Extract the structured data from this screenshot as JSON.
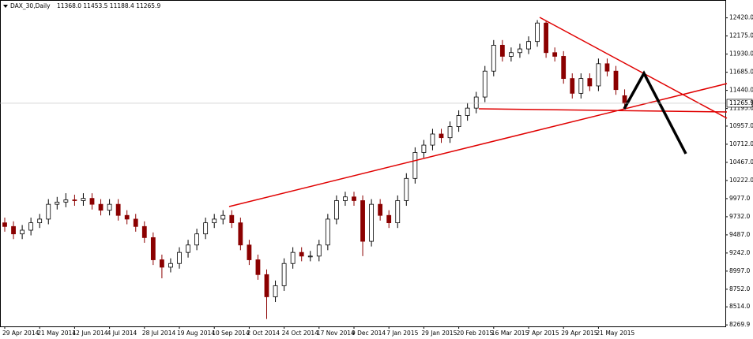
{
  "header": {
    "symbol": "DAX_30,Daily",
    "ohlc": "11368.0 11453.5 11188.4 11265.9"
  },
  "chart_data": {
    "type": "candlestick",
    "categories": [
      "29 Apr 2014",
      null,
      null,
      null,
      "21 May 2014",
      null,
      null,
      null,
      "12 Jun 2014",
      null,
      null,
      null,
      "4 Jul 2014",
      null,
      null,
      null,
      "28 Jul 2014",
      null,
      null,
      null,
      "19 Aug 2014",
      null,
      null,
      null,
      "10 Sep 2014",
      null,
      null,
      null,
      "2 Oct 2014",
      null,
      null,
      null,
      "24 Oct 2014",
      null,
      null,
      null,
      "17 Nov 2014",
      null,
      null,
      null,
      "9 Dec 2014",
      null,
      null,
      null,
      "7 Jan 2015",
      null,
      null,
      null,
      "29 Jan 2015",
      null,
      null,
      null,
      "20 Feb 2015",
      null,
      null,
      null,
      "16 Mar 2015",
      null,
      null,
      null,
      "7 Apr 2015",
      null,
      null,
      null,
      "29 Apr 2015",
      null,
      null,
      null,
      "21 May 2015",
      null,
      null,
      null
    ],
    "open": [
      9650,
      9600,
      9500,
      9550,
      9650,
      9700,
      9900,
      9930,
      9960,
      9950,
      9980,
      9900,
      9820,
      9900,
      9750,
      9700,
      9600,
      9450,
      9150,
      9050,
      9100,
      9250,
      9350,
      9500,
      9650,
      9700,
      9750,
      9650,
      9350,
      9150,
      8950,
      8650,
      8800,
      9100,
      9250,
      9200,
      9200,
      9350,
      9700,
      9950,
      10000,
      9950,
      9400,
      9900,
      9750,
      9650,
      9950,
      10250,
      10600,
      10700,
      10850,
      10800,
      10950,
      11100,
      11200,
      11350,
      11700,
      12050,
      11900,
      11950,
      12000,
      12100,
      12350,
      11950,
      11900,
      11600,
      11400,
      11600,
      11500,
      11800,
      11700,
      11368.0
    ],
    "high": [
      9720,
      9670,
      9620,
      9720,
      9770,
      9970,
      10000,
      10050,
      10030,
      10050,
      10050,
      9970,
      9970,
      9970,
      9820,
      9770,
      9670,
      9520,
      9220,
      9170,
      9320,
      9420,
      9570,
      9720,
      9770,
      9820,
      9820,
      9720,
      9420,
      9220,
      9020,
      8870,
      9170,
      9320,
      9320,
      9270,
      9420,
      9770,
      10020,
      10070,
      10070,
      10020,
      9970,
      9970,
      9820,
      10020,
      10320,
      10670,
      10770,
      10920,
      10920,
      11020,
      11170,
      11270,
      11420,
      11770,
      12120,
      12120,
      12020,
      12070,
      12170,
      12390,
      12380,
      12020,
      11970,
      11670,
      11670,
      11670,
      11870,
      11870,
      11770,
      11453.5
    ],
    "low": [
      9530,
      9430,
      9430,
      9480,
      9580,
      9630,
      9830,
      9860,
      9880,
      9880,
      9830,
      9750,
      9750,
      9680,
      9630,
      9530,
      9380,
      9080,
      8900,
      8980,
      9030,
      9180,
      9280,
      9430,
      9580,
      9630,
      9580,
      9280,
      9080,
      8880,
      8350,
      8580,
      8730,
      9030,
      9130,
      9130,
      9130,
      9280,
      9630,
      9880,
      9880,
      9200,
      9330,
      9680,
      9580,
      9580,
      9880,
      10180,
      10530,
      10630,
      10730,
      10730,
      10880,
      11030,
      11130,
      11280,
      11630,
      11830,
      11830,
      11880,
      11930,
      12030,
      11880,
      11830,
      11530,
      11330,
      11330,
      11430,
      11430,
      11630,
      11380,
      11188.4
    ],
    "close": [
      9600,
      9500,
      9550,
      9650,
      9700,
      9900,
      9930,
      9960,
      9950,
      9980,
      9900,
      9820,
      9900,
      9750,
      9700,
      9600,
      9450,
      9150,
      9050,
      9100,
      9250,
      9350,
      9500,
      9650,
      9700,
      9750,
      9650,
      9350,
      9150,
      8950,
      8650,
      8800,
      9100,
      9250,
      9200,
      9200,
      9350,
      9700,
      9950,
      10000,
      9950,
      9400,
      9900,
      9750,
      9650,
      9950,
      10250,
      10600,
      10700,
      10850,
      10800,
      10950,
      11100,
      11200,
      11350,
      11700,
      12050,
      11900,
      11950,
      12000,
      12100,
      12350,
      11950,
      11900,
      11600,
      11400,
      11600,
      11500,
      11800,
      11700,
      11450,
      11265.9
    ],
    "up_color": "#000000",
    "down_color": "#8b0000",
    "ylim": [
      8250,
      12640
    ],
    "yticks": [
      {
        "value": 12420,
        "label": "12420.0"
      },
      {
        "value": 12175,
        "label": "12175.0"
      },
      {
        "value": 11930,
        "label": "11930.0"
      },
      {
        "value": 11685,
        "label": "11685.0"
      },
      {
        "value": 11440,
        "label": "11440.0"
      },
      {
        "value": 11195,
        "label": "11195.0"
      },
      {
        "value": 10957,
        "label": "10957.0"
      },
      {
        "value": 10712,
        "label": "10712.0"
      },
      {
        "value": 10467,
        "label": "10467.0"
      },
      {
        "value": 10222,
        "label": "10222.0"
      },
      {
        "value": 9977,
        "label": "9977.0"
      },
      {
        "value": 9732,
        "label": "9732.0"
      },
      {
        "value": 9487,
        "label": "9487.0"
      },
      {
        "value": 9242,
        "label": "9242.0"
      },
      {
        "value": 8997,
        "label": "8997.0"
      },
      {
        "value": 8752,
        "label": "8752.0"
      },
      {
        "value": 8514,
        "label": "8514.0"
      },
      {
        "value": 8269.9,
        "label": "8269.9"
      }
    ],
    "price_tag": {
      "value": 11265.9,
      "label": "11265.9"
    }
  }
}
